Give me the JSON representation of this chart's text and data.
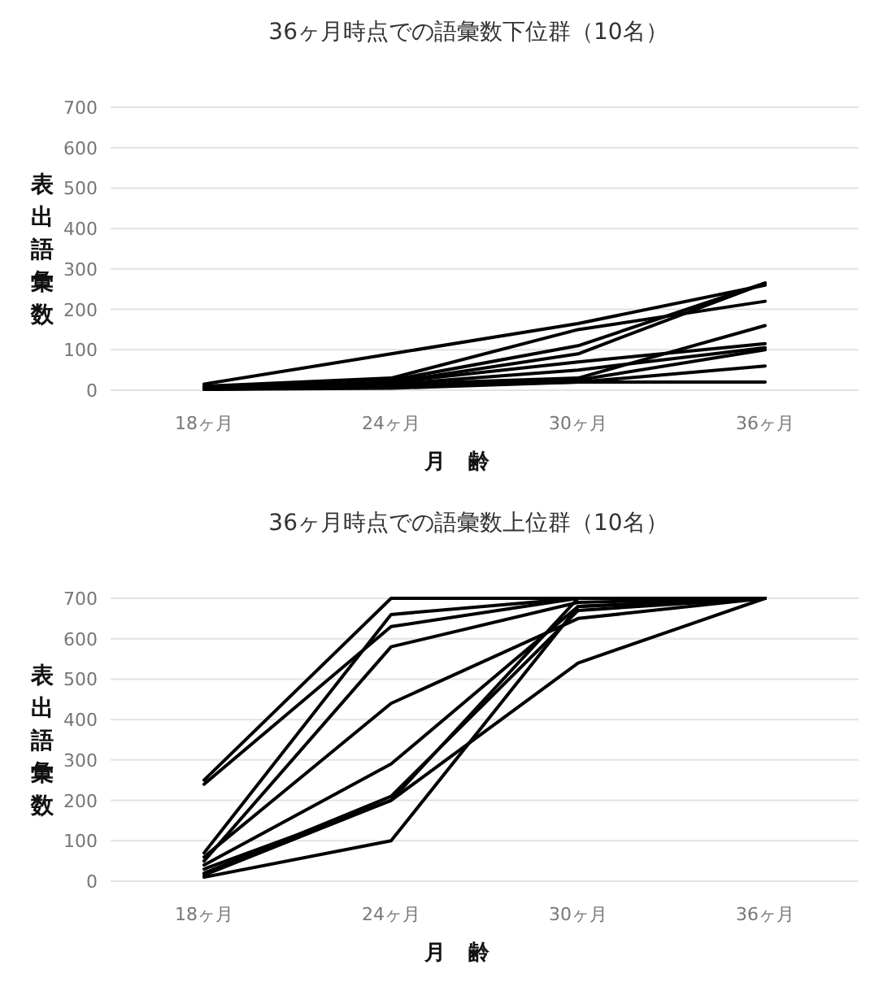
{
  "chart_data": [
    {
      "type": "line",
      "title": "36ヶ月時点での語彙数下位群（10名）",
      "xlabel": "月齢",
      "ylabel": "表出語彙数",
      "categories": [
        "18ヶ月",
        "24ヶ月",
        "30ヶ月",
        "36ヶ月"
      ],
      "ylim": [
        0,
        700
      ],
      "yticks": [
        0,
        100,
        200,
        300,
        400,
        500,
        600,
        700
      ],
      "grid": "y",
      "series": [
        {
          "color": "#000000",
          "values": [
            15,
            90,
            165,
            260
          ]
        },
        {
          "color": "#000000",
          "values": [
            10,
            30,
            150,
            220
          ]
        },
        {
          "color": "#000000",
          "values": [
            5,
            25,
            110,
            265
          ]
        },
        {
          "color": "#000000",
          "values": [
            5,
            20,
            90,
            265
          ]
        },
        {
          "color": "#000000",
          "values": [
            10,
            20,
            70,
            115
          ]
        },
        {
          "color": "#000000",
          "values": [
            5,
            15,
            30,
            160
          ]
        },
        {
          "color": "#000000",
          "values": [
            5,
            15,
            50,
            105
          ]
        },
        {
          "color": "#000000",
          "values": [
            5,
            10,
            25,
            100
          ]
        },
        {
          "color": "#000000",
          "values": [
            2,
            10,
            20,
            60
          ]
        },
        {
          "color": "#000000",
          "values": [
            2,
            5,
            20,
            20
          ]
        }
      ]
    },
    {
      "type": "line",
      "title": "36ヶ月時点での語彙数上位群（10名）",
      "xlabel": "月齢",
      "ylabel": "表出語彙数",
      "categories": [
        "18ヶ月",
        "24ヶ月",
        "30ヶ月",
        "36ヶ月"
      ],
      "ylim": [
        0,
        700
      ],
      "yticks": [
        0,
        100,
        200,
        300,
        400,
        500,
        600,
        700
      ],
      "grid": "y",
      "series": [
        {
          "color": "#000000",
          "values": [
            250,
            700,
            700,
            700
          ]
        },
        {
          "color": "#000000",
          "values": [
            240,
            630,
            700,
            700
          ]
        },
        {
          "color": "#000000",
          "values": [
            70,
            660,
            700,
            700
          ]
        },
        {
          "color": "#000000",
          "values": [
            50,
            580,
            690,
            700
          ]
        },
        {
          "color": "#000000",
          "values": [
            60,
            440,
            650,
            700
          ]
        },
        {
          "color": "#000000",
          "values": [
            40,
            290,
            680,
            700
          ]
        },
        {
          "color": "#000000",
          "values": [
            20,
            210,
            670,
            700
          ]
        },
        {
          "color": "#000000",
          "values": [
            15,
            200,
            540,
            700
          ]
        },
        {
          "color": "#000000",
          "values": [
            10,
            100,
            680,
            700
          ]
        },
        {
          "color": "#000000",
          "values": [
            30,
            200,
            700,
            700
          ]
        }
      ]
    }
  ]
}
